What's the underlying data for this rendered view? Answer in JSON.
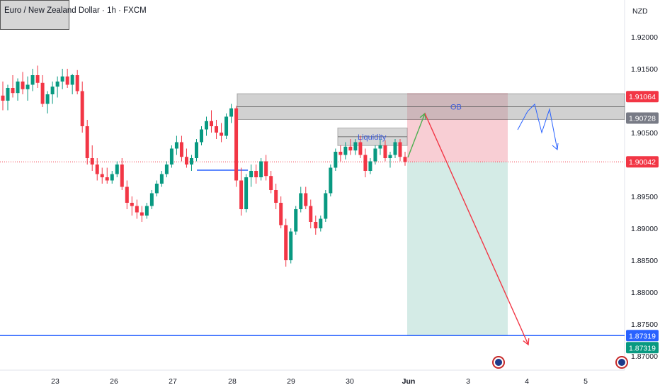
{
  "header": {
    "symbol_title": "Euro / New Zealand Dollar · 1h · FXCM",
    "currency": "NZD"
  },
  "chart_data": {
    "type": "candlestick",
    "title": "Euro / New Zealand Dollar · 1h · FXCM",
    "ylim": [
      1.867,
      1.9245
    ],
    "price_axis_labels": [
      "1.92000",
      "1.91500",
      "1.90500",
      "1.89500",
      "1.89000",
      "1.88500",
      "1.88000",
      "1.87500",
      "1.87000"
    ],
    "time_axis_labels": [
      "23",
      "26",
      "27",
      "28",
      "29",
      "30",
      "Jun",
      "3",
      "4",
      "5"
    ],
    "price_tags": [
      {
        "label": "1.91064",
        "value": 1.91064,
        "color": "#f23645"
      },
      {
        "label": "1.90728",
        "value": 1.90728,
        "color": "#787b86"
      },
      {
        "label": "1.90042",
        "value": 1.90042,
        "color": "#f23645"
      },
      {
        "label": "1.87319",
        "value": 1.87319,
        "color": "#2962ff"
      },
      {
        "label": "1.87319",
        "value": 1.87319,
        "color": "#089981"
      }
    ],
    "current_price": 1.90042,
    "annotations": {
      "ob_label": "OB",
      "liquidity_label": "Liquidity",
      "ob_zone": [
        1.90728,
        1.91064
      ],
      "liquidity_zone": [
        1.9032,
        1.9055
      ],
      "target_level": 1.87319,
      "trade_entry": 1.90042,
      "trade_stop": 1.91064,
      "trade_target": 1.87319
    },
    "ohlc": [
      [
        1.9108,
        1.913,
        1.9085,
        1.91
      ],
      [
        1.91,
        1.9125,
        1.9085,
        1.912
      ],
      [
        1.912,
        1.914,
        1.9105,
        1.9112
      ],
      [
        1.9112,
        1.9135,
        1.91,
        1.913
      ],
      [
        1.913,
        1.9145,
        1.911,
        1.9118
      ],
      [
        1.9118,
        1.9138,
        1.91,
        1.9125
      ],
      [
        1.9125,
        1.915,
        1.9115,
        1.914
      ],
      [
        1.914,
        1.9155,
        1.912,
        1.9128
      ],
      [
        1.9128,
        1.914,
        1.909,
        1.9095
      ],
      [
        1.9095,
        1.9115,
        1.908,
        1.911
      ],
      [
        1.911,
        1.913,
        1.9095,
        1.9122
      ],
      [
        1.9122,
        1.9138,
        1.9105,
        1.913
      ],
      [
        1.913,
        1.915,
        1.9118,
        1.9138
      ],
      [
        1.9138,
        1.915,
        1.912,
        1.9125
      ],
      [
        1.9125,
        1.9142,
        1.911,
        1.914
      ],
      [
        1.914,
        1.9148,
        1.911,
        1.9115
      ],
      [
        1.9115,
        1.913,
        1.905,
        1.906
      ],
      [
        1.906,
        1.907,
        1.9,
        1.901
      ],
      [
        1.901,
        1.903,
        1.899,
        1.9
      ],
      [
        1.9,
        1.901,
        1.8975,
        1.8985
      ],
      [
        1.8985,
        1.8995,
        1.897,
        1.898
      ],
      [
        1.898,
        1.8995,
        1.897,
        1.8975
      ],
      [
        1.8975,
        1.899,
        1.897,
        1.8985
      ],
      [
        1.8985,
        1.9005,
        1.898,
        1.9
      ],
      [
        1.9,
        1.901,
        1.896,
        1.8965
      ],
      [
        1.8965,
        1.8975,
        1.893,
        1.894
      ],
      [
        1.894,
        1.895,
        1.892,
        1.8935
      ],
      [
        1.8935,
        1.8945,
        1.8915,
        1.8925
      ],
      [
        1.8925,
        1.8935,
        1.891,
        1.892
      ],
      [
        1.892,
        1.894,
        1.8915,
        1.8935
      ],
      [
        1.8935,
        1.896,
        1.893,
        1.8955
      ],
      [
        1.8955,
        1.8975,
        1.895,
        1.897
      ],
      [
        1.897,
        1.899,
        1.8965,
        1.8985
      ],
      [
        1.8985,
        1.9005,
        1.898,
        1.9
      ],
      [
        1.9,
        1.903,
        1.8995,
        1.9025
      ],
      [
        1.9025,
        1.9045,
        1.9015,
        1.9035
      ],
      [
        1.9035,
        1.9045,
        1.9005,
        1.9012
      ],
      [
        1.9012,
        1.9025,
        1.8995,
        1.9
      ],
      [
        1.9,
        1.9015,
        1.899,
        1.901
      ],
      [
        1.901,
        1.904,
        1.9005,
        1.9035
      ],
      [
        1.9035,
        1.906,
        1.903,
        1.9055
      ],
      [
        1.9055,
        1.9075,
        1.9045,
        1.9068
      ],
      [
        1.9068,
        1.9085,
        1.905,
        1.906
      ],
      [
        1.906,
        1.907,
        1.904,
        1.905
      ],
      [
        1.905,
        1.9065,
        1.9035,
        1.9045
      ],
      [
        1.9045,
        1.908,
        1.904,
        1.9075
      ],
      [
        1.9075,
        1.9095,
        1.9065,
        1.9088
      ],
      [
        1.9088,
        1.9092,
        1.8965,
        1.8975
      ],
      [
        1.8975,
        1.8995,
        1.892,
        1.893
      ],
      [
        1.893,
        1.8985,
        1.8925,
        1.898
      ],
      [
        1.898,
        1.9,
        1.8965,
        1.899
      ],
      [
        1.899,
        1.9,
        1.897,
        1.898
      ],
      [
        1.898,
        1.901,
        1.8975,
        1.9005
      ],
      [
        1.9005,
        1.9015,
        1.8975,
        1.8982
      ],
      [
        1.8982,
        1.899,
        1.8955,
        1.896
      ],
      [
        1.896,
        1.897,
        1.893,
        1.894
      ],
      [
        1.894,
        1.895,
        1.89,
        1.8905
      ],
      [
        1.8905,
        1.8915,
        1.884,
        1.885
      ],
      [
        1.885,
        1.89,
        1.8845,
        1.8895
      ],
      [
        1.8895,
        1.8935,
        1.889,
        1.893
      ],
      [
        1.893,
        1.8965,
        1.8925,
        1.8955
      ],
      [
        1.8955,
        1.8965,
        1.893,
        1.8935
      ],
      [
        1.8935,
        1.8945,
        1.89,
        1.891
      ],
      [
        1.891,
        1.892,
        1.889,
        1.89
      ],
      [
        1.89,
        1.892,
        1.8895,
        1.8915
      ],
      [
        1.8915,
        1.896,
        1.891,
        1.8955
      ],
      [
        1.8955,
        1.9,
        1.895,
        1.8995
      ],
      [
        1.8995,
        1.9025,
        1.899,
        1.902
      ],
      [
        1.902,
        1.903,
        1.9005,
        1.9015
      ],
      [
        1.9015,
        1.9035,
        1.9008,
        1.9028
      ],
      [
        1.9028,
        1.904,
        1.9015,
        1.9022
      ],
      [
        1.9022,
        1.904,
        1.9015,
        1.9035
      ],
      [
        1.9035,
        1.9045,
        1.901,
        1.9015
      ],
      [
        1.9015,
        1.9025,
        1.898,
        1.899
      ],
      [
        1.899,
        1.901,
        1.8985,
        1.9005
      ],
      [
        1.9005,
        1.903,
        1.9,
        1.9025
      ],
      [
        1.9025,
        1.904,
        1.9015,
        1.903
      ],
      [
        1.903,
        1.9038,
        1.9005,
        1.901
      ],
      [
        1.901,
        1.902,
        1.8995,
        1.9015
      ],
      [
        1.9015,
        1.904,
        1.901,
        1.9035
      ],
      [
        1.9035,
        1.904,
        1.9005,
        1.9012
      ],
      [
        1.9012,
        1.902,
        1.8998,
        1.9004
      ]
    ]
  }
}
